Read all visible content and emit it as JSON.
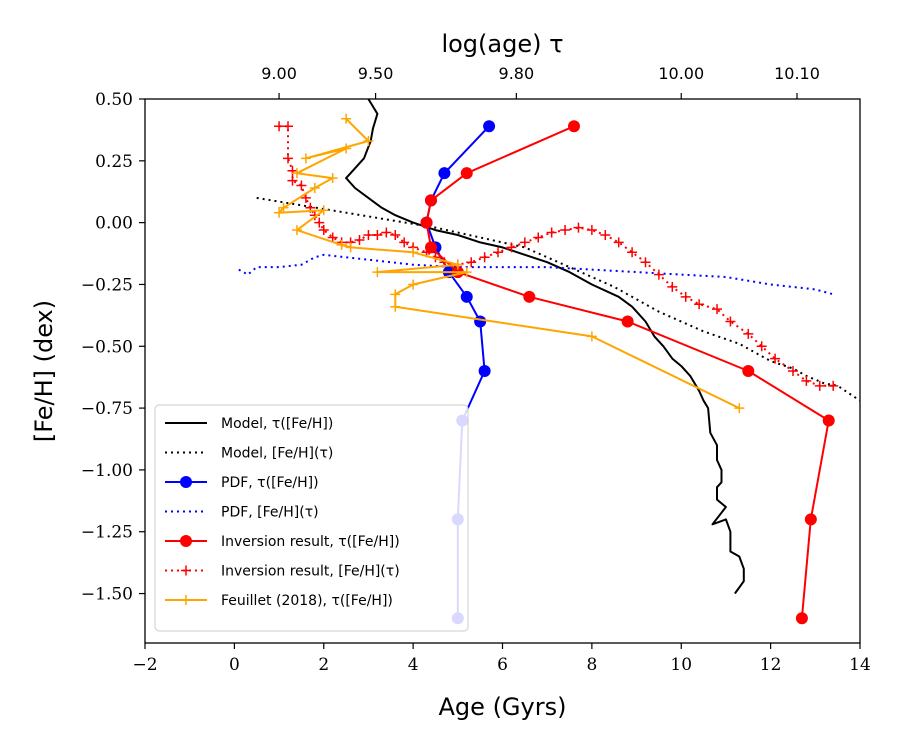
{
  "chart_data": {
    "type": "line",
    "xlabel": "Age (Gyrs)",
    "ylabel": "[Fe/H] (dex)",
    "top_xlabel": "log(age) τ",
    "xlim": [
      -2,
      14
    ],
    "ylim": [
      -1.7,
      0.5
    ],
    "x_ticks": [
      -2,
      0,
      2,
      4,
      6,
      8,
      10,
      12,
      14
    ],
    "x_tick_labels": [
      "−2",
      "0",
      "2",
      "4",
      "6",
      "8",
      "10",
      "12",
      "14"
    ],
    "y_ticks": [
      0.5,
      0.25,
      0.0,
      -0.25,
      -0.5,
      -0.75,
      -1.0,
      -1.25,
      -1.5
    ],
    "y_tick_labels": [
      "0.50",
      "0.25",
      "0.00",
      "−0.25",
      "−0.50",
      "−0.75",
      "−1.00",
      "−1.25",
      "−1.50"
    ],
    "top_ticks": [
      {
        "age": 1.0,
        "label": "9.00"
      },
      {
        "age": 3.16,
        "label": "9.50"
      },
      {
        "age": 6.31,
        "label": "9.80"
      },
      {
        "age": 10.0,
        "label": "10.00"
      },
      {
        "age": 12.59,
        "label": "10.10"
      }
    ],
    "series": [
      {
        "name": "Model, τ([Fe/H])",
        "color": "#000000",
        "style": "solid",
        "marker": "none",
        "points": [
          [
            3.0,
            0.5
          ],
          [
            3.2,
            0.44
          ],
          [
            3.1,
            0.38
          ],
          [
            3.05,
            0.33
          ],
          [
            2.9,
            0.26
          ],
          [
            2.6,
            0.2
          ],
          [
            2.5,
            0.18
          ],
          [
            2.7,
            0.14
          ],
          [
            3.0,
            0.1
          ],
          [
            3.3,
            0.06
          ],
          [
            3.6,
            0.03
          ],
          [
            4.0,
            0.0
          ],
          [
            4.5,
            -0.03
          ],
          [
            5.0,
            -0.05
          ],
          [
            5.5,
            -0.08
          ],
          [
            6.0,
            -0.1
          ],
          [
            6.5,
            -0.13
          ],
          [
            7.0,
            -0.16
          ],
          [
            7.5,
            -0.2
          ],
          [
            8.0,
            -0.25
          ],
          [
            8.6,
            -0.3
          ],
          [
            8.9,
            -0.34
          ],
          [
            9.2,
            -0.4
          ],
          [
            9.4,
            -0.46
          ],
          [
            9.6,
            -0.5
          ],
          [
            9.8,
            -0.55
          ],
          [
            10.0,
            -0.58
          ],
          [
            10.2,
            -0.62
          ],
          [
            10.4,
            -0.68
          ],
          [
            10.5,
            -0.72
          ],
          [
            10.6,
            -0.75
          ],
          [
            10.65,
            -0.85
          ],
          [
            10.8,
            -0.9
          ],
          [
            10.8,
            -0.96
          ],
          [
            10.9,
            -1.0
          ],
          [
            10.9,
            -1.05
          ],
          [
            10.8,
            -1.07
          ],
          [
            10.8,
            -1.12
          ],
          [
            11.0,
            -1.15
          ],
          [
            10.7,
            -1.22
          ],
          [
            11.0,
            -1.2
          ],
          [
            11.1,
            -1.25
          ],
          [
            11.1,
            -1.33
          ],
          [
            11.3,
            -1.35
          ],
          [
            11.4,
            -1.4
          ],
          [
            11.4,
            -1.45
          ],
          [
            11.2,
            -1.5
          ]
        ]
      },
      {
        "name": "Model, [Fe/H](τ)",
        "color": "#000000",
        "style": "dotted",
        "marker": "none",
        "points": [
          [
            0.5,
            0.1
          ],
          [
            1.5,
            0.07
          ],
          [
            2.5,
            0.04
          ],
          [
            3.5,
            0.01
          ],
          [
            4.5,
            -0.02
          ],
          [
            5.5,
            -0.06
          ],
          [
            6.5,
            -0.1
          ],
          [
            7.5,
            -0.18
          ],
          [
            8.5,
            -0.26
          ],
          [
            9.5,
            -0.36
          ],
          [
            10.5,
            -0.44
          ],
          [
            11.3,
            -0.49
          ],
          [
            12.0,
            -0.56
          ],
          [
            12.5,
            -0.59
          ],
          [
            12.8,
            -0.62
          ],
          [
            13.2,
            -0.65
          ],
          [
            13.5,
            -0.66
          ],
          [
            14.0,
            -0.72
          ]
        ]
      },
      {
        "name": "PDF, τ([Fe/H])",
        "color": "#0000ff",
        "style": "solid",
        "marker": "circle",
        "points": [
          [
            5.7,
            0.39
          ],
          [
            4.7,
            0.2
          ],
          [
            4.4,
            0.09
          ],
          [
            4.3,
            0.0
          ],
          [
            4.5,
            -0.1
          ],
          [
            4.8,
            -0.2
          ],
          [
            5.2,
            -0.3
          ],
          [
            5.5,
            -0.4
          ],
          [
            5.6,
            -0.6
          ],
          [
            5.1,
            -0.8
          ],
          [
            5.0,
            -1.2
          ],
          [
            5.0,
            -1.6
          ]
        ]
      },
      {
        "name": "PDF, [Fe/H](τ)",
        "color": "#0000ff",
        "style": "dotted",
        "marker": "none",
        "points": [
          [
            0.1,
            -0.19
          ],
          [
            0.3,
            -0.21
          ],
          [
            0.5,
            -0.18
          ],
          [
            1.0,
            -0.18
          ],
          [
            1.5,
            -0.17
          ],
          [
            1.8,
            -0.14
          ],
          [
            2.0,
            -0.13
          ],
          [
            2.5,
            -0.14
          ],
          [
            3.0,
            -0.15
          ],
          [
            4.0,
            -0.17
          ],
          [
            5.0,
            -0.18
          ],
          [
            6.0,
            -0.18
          ],
          [
            7.0,
            -0.18
          ],
          [
            8.0,
            -0.19
          ],
          [
            9.0,
            -0.2
          ],
          [
            10.0,
            -0.21
          ],
          [
            11.0,
            -0.22
          ],
          [
            12.0,
            -0.25
          ],
          [
            13.0,
            -0.27
          ],
          [
            13.4,
            -0.29
          ]
        ]
      },
      {
        "name": "Inversion result, τ([Fe/H])",
        "color": "#ff0000",
        "style": "solid",
        "marker": "circle",
        "points": [
          [
            7.6,
            0.39
          ],
          [
            5.2,
            0.2
          ],
          [
            4.4,
            0.09
          ],
          [
            4.3,
            0.0
          ],
          [
            4.4,
            -0.1
          ],
          [
            5.0,
            -0.2
          ],
          [
            6.6,
            -0.3
          ],
          [
            8.8,
            -0.4
          ],
          [
            11.5,
            -0.6
          ],
          [
            13.3,
            -0.8
          ],
          [
            12.9,
            -1.2
          ],
          [
            12.7,
            -1.6
          ]
        ]
      },
      {
        "name": "Inversion result, [Fe/H](τ)",
        "color": "#ff0000",
        "style": "dotted",
        "marker": "plus",
        "points": [
          [
            1.0,
            0.39
          ],
          [
            1.2,
            0.39
          ],
          [
            1.2,
            0.26
          ],
          [
            1.3,
            0.21
          ],
          [
            1.3,
            0.17
          ],
          [
            1.5,
            0.15
          ],
          [
            1.6,
            0.1
          ],
          [
            1.7,
            0.06
          ],
          [
            1.8,
            0.03
          ],
          [
            1.9,
            0.0
          ],
          [
            2.0,
            -0.03
          ],
          [
            2.2,
            -0.06
          ],
          [
            2.4,
            -0.08
          ],
          [
            2.6,
            -0.08
          ],
          [
            2.8,
            -0.07
          ],
          [
            3.0,
            -0.05
          ],
          [
            3.2,
            -0.05
          ],
          [
            3.4,
            -0.04
          ],
          [
            3.6,
            -0.05
          ],
          [
            3.8,
            -0.08
          ],
          [
            4.0,
            -0.1
          ],
          [
            4.3,
            -0.12
          ],
          [
            4.5,
            -0.14
          ],
          [
            4.7,
            -0.16
          ],
          [
            5.0,
            -0.17
          ],
          [
            5.3,
            -0.16
          ],
          [
            5.6,
            -0.14
          ],
          [
            5.9,
            -0.12
          ],
          [
            6.2,
            -0.1
          ],
          [
            6.5,
            -0.08
          ],
          [
            6.8,
            -0.06
          ],
          [
            7.1,
            -0.04
          ],
          [
            7.4,
            -0.03
          ],
          [
            7.7,
            -0.02
          ],
          [
            8.0,
            -0.03
          ],
          [
            8.3,
            -0.05
          ],
          [
            8.6,
            -0.08
          ],
          [
            8.9,
            -0.12
          ],
          [
            9.2,
            -0.16
          ],
          [
            9.5,
            -0.21
          ],
          [
            9.8,
            -0.26
          ],
          [
            10.1,
            -0.3
          ],
          [
            10.4,
            -0.33
          ],
          [
            10.8,
            -0.35
          ],
          [
            11.1,
            -0.4
          ],
          [
            11.5,
            -0.45
          ],
          [
            11.8,
            -0.5
          ],
          [
            12.1,
            -0.55
          ],
          [
            12.5,
            -0.6
          ],
          [
            12.8,
            -0.64
          ],
          [
            13.1,
            -0.66
          ],
          [
            13.4,
            -0.66
          ]
        ]
      },
      {
        "name": "Feuillet (2018), τ([Fe/H])",
        "color": "#ffa500",
        "style": "solid",
        "marker": "plus",
        "points": [
          [
            2.5,
            0.42
          ],
          [
            3.0,
            0.33
          ],
          [
            1.6,
            0.26
          ],
          [
            2.5,
            0.3
          ],
          [
            1.4,
            0.2
          ],
          [
            2.2,
            0.18
          ],
          [
            1.8,
            0.14
          ],
          [
            1.1,
            0.06
          ],
          [
            1.0,
            0.04
          ],
          [
            2.0,
            0.05
          ],
          [
            1.4,
            -0.03
          ],
          [
            2.4,
            -0.09
          ],
          [
            2.6,
            -0.1
          ],
          [
            4.0,
            -0.12
          ],
          [
            5.0,
            -0.17
          ],
          [
            3.2,
            -0.2
          ],
          [
            5.2,
            -0.2
          ],
          [
            4.0,
            -0.25
          ],
          [
            3.6,
            -0.29
          ],
          [
            3.6,
            -0.34
          ],
          [
            8.0,
            -0.46
          ],
          [
            11.3,
            -0.75
          ]
        ]
      }
    ],
    "legend_position": "lower-left"
  }
}
